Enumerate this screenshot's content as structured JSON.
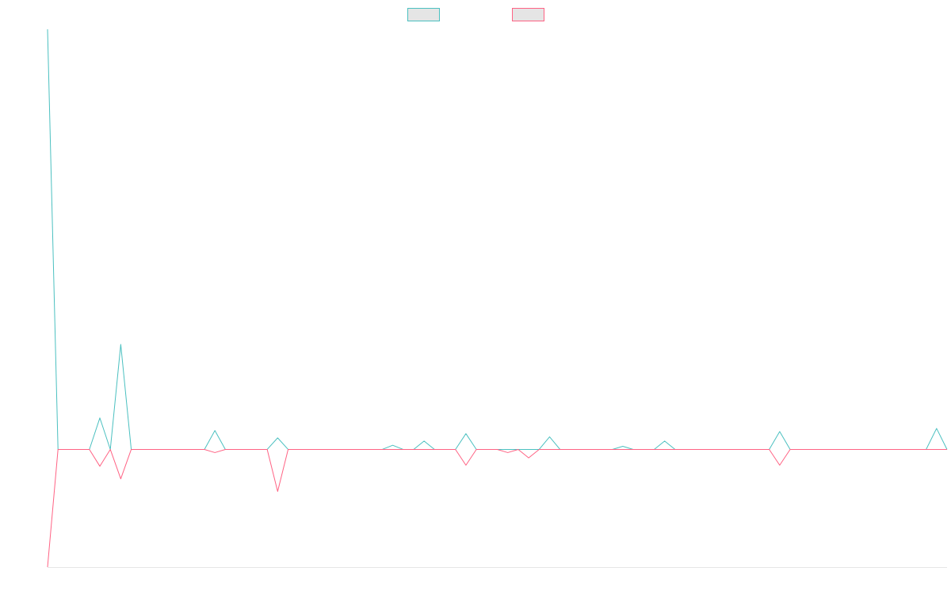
{
  "chart_data": {
    "type": "line",
    "title": "",
    "xlabel": "",
    "ylabel": "",
    "grid": false,
    "legend_placement": "top-center",
    "xlim": [
      0,
      86
    ],
    "ylim": [
      -112,
      400
    ],
    "x": [
      0,
      1,
      2,
      3,
      4,
      5,
      6,
      7,
      8,
      9,
      10,
      11,
      12,
      13,
      14,
      15,
      16,
      17,
      18,
      19,
      20,
      21,
      22,
      23,
      24,
      25,
      26,
      27,
      28,
      29,
      30,
      31,
      32,
      33,
      34,
      35,
      36,
      37,
      38,
      39,
      40,
      41,
      42,
      43,
      44,
      45,
      46,
      47,
      48,
      49,
      50,
      51,
      52,
      53,
      54,
      55,
      56,
      57,
      58,
      59,
      60,
      61,
      62,
      63,
      64,
      65,
      66,
      67,
      68,
      69,
      70,
      71,
      72,
      73,
      74,
      75,
      76,
      77,
      78,
      79,
      80,
      81,
      82,
      83,
      84,
      85,
      86
    ],
    "series": [
      {
        "name": "",
        "color": "#4bc0c0",
        "values": [
          400,
          0,
          0,
          0,
          0,
          30,
          0,
          100,
          0,
          0,
          0,
          0,
          0,
          0,
          0,
          0,
          18,
          0,
          0,
          0,
          0,
          0,
          11,
          0,
          0,
          0,
          0,
          0,
          0,
          0,
          0,
          0,
          0,
          4,
          0,
          0,
          8,
          0,
          0,
          0,
          15,
          0,
          0,
          0,
          0,
          0,
          0,
          0,
          12,
          0,
          0,
          0,
          0,
          0,
          0,
          3,
          0,
          0,
          0,
          8,
          0,
          0,
          0,
          0,
          0,
          0,
          0,
          0,
          0,
          0,
          17,
          0,
          0,
          0,
          0,
          0,
          0,
          0,
          0,
          0,
          0,
          0,
          0,
          0,
          0,
          20,
          0
        ]
      },
      {
        "name": "",
        "color": "#ff6384",
        "values": [
          -112,
          0,
          0,
          0,
          0,
          -16,
          0,
          -28,
          0,
          0,
          0,
          0,
          0,
          0,
          0,
          0,
          -3,
          0,
          0,
          0,
          0,
          0,
          -40,
          0,
          0,
          0,
          0,
          0,
          0,
          0,
          0,
          0,
          0,
          0,
          0,
          0,
          0,
          0,
          0,
          0,
          -15,
          0,
          0,
          0,
          -3,
          0,
          -8,
          0,
          0,
          0,
          0,
          0,
          0,
          0,
          0,
          0,
          0,
          0,
          0,
          0,
          0,
          0,
          0,
          0,
          0,
          0,
          0,
          0,
          0,
          0,
          -15,
          0,
          0,
          0,
          0,
          0,
          0,
          0,
          0,
          0,
          0,
          0,
          0,
          0,
          0,
          0,
          0
        ]
      }
    ]
  }
}
